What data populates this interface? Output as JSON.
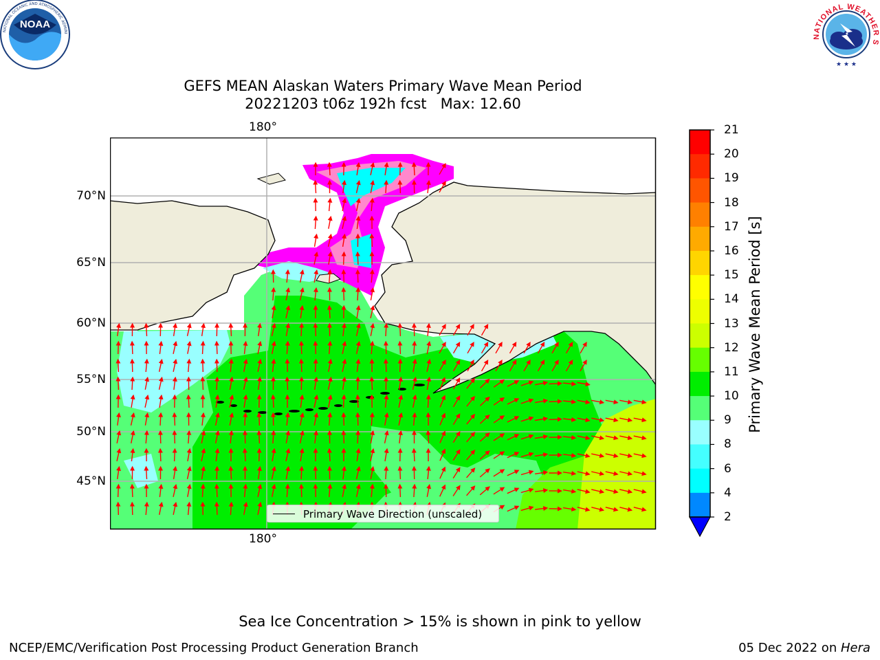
{
  "title": {
    "line1": "GEFS MEAN Alaskan Waters Primary Wave Mean Period",
    "line2": "20221203 t06z 192h fcst   Max: 12.60"
  },
  "logos": {
    "left_icon": "noaa-logo-icon",
    "left_text": "NOAA",
    "left_ring_text": "NATIONAL OCEANIC AND ATMOSPHERIC ADMINISTRATION · U.S. DEPARTMENT OF COMMERCE",
    "right_icon": "national-weather-service-logo-icon",
    "right_ring_text": "NATIONAL WEATHER SERVICE"
  },
  "map": {
    "longitude_label_top": "180°",
    "longitude_label_bottom": "180°",
    "latitude_labels": [
      "70°N",
      "65°N",
      "60°N",
      "55°N",
      "50°N",
      "45°N"
    ],
    "legend_label": "Primary Wave Direction (unscaled)",
    "arrow_color": "#ff0000",
    "land_color": "#efeddb",
    "ice_note_colors": [
      "#ff00ff",
      "#ff88cc",
      "#ffff00"
    ]
  },
  "colorbar": {
    "label": "Primary Wave Mean Period [s]",
    "ticks": [
      "21",
      "20",
      "19",
      "18",
      "17",
      "16",
      "15",
      "14",
      "13",
      "12",
      "11",
      "10",
      "9",
      "8",
      "6",
      "4",
      "2"
    ],
    "colors_top_to_bottom": [
      "#ff0000",
      "#ff2a00",
      "#ff5500",
      "#ff8000",
      "#ffaa00",
      "#ffd500",
      "#ffff00",
      "#eeff00",
      "#ccff00",
      "#66ff00",
      "#00ee00",
      "#55ff77",
      "#99ffff",
      "#44ffff",
      "#00ffff",
      "#0088ff"
    ],
    "extend_color": "#0000ff"
  },
  "footnote": "Sea Ice Concentration > 15% is shown in pink to yellow",
  "credit_left": "NCEP/EMC/Verification Post Processing Product Generation Branch",
  "credit_right_date": "05 Dec 2022 on ",
  "credit_right_host": "Hera"
}
